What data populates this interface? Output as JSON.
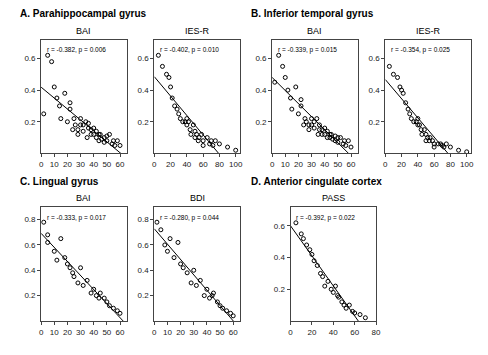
{
  "chart_data": [
    {
      "type": "scatter",
      "subtitle": "A. Parahippocampal gyrus",
      "title": "BAI",
      "annotations": [
        "r = -0.382, p = 0.006"
      ],
      "x": [
        2,
        5,
        8,
        10,
        12,
        14,
        15,
        18,
        20,
        22,
        22,
        24,
        25,
        26,
        28,
        28,
        30,
        30,
        32,
        32,
        34,
        35,
        36,
        36,
        38,
        38,
        40,
        40,
        42,
        42,
        44,
        44,
        45,
        46,
        48,
        48,
        50,
        50,
        52,
        54,
        55,
        56,
        58,
        60
      ],
      "values": [
        0.25,
        0.62,
        0.58,
        0.42,
        0.35,
        0.3,
        0.22,
        0.38,
        0.2,
        0.28,
        0.32,
        0.15,
        0.22,
        0.18,
        0.12,
        0.15,
        0.18,
        0.22,
        0.14,
        0.18,
        0.2,
        0.1,
        0.16,
        0.19,
        0.15,
        0.12,
        0.12,
        0.16,
        0.14,
        0.1,
        0.08,
        0.12,
        0.12,
        0.09,
        0.1,
        0.07,
        0.08,
        0.11,
        0.12,
        0.06,
        0.08,
        0.05,
        0.08,
        0.05
      ],
      "fit": {
        "slope": -0.006906,
        "intercept": 0.4188
      },
      "xlim": [
        0,
        65
      ],
      "ylim": [
        0,
        0.72
      ],
      "xticks": [
        0,
        10,
        20,
        30,
        40,
        50,
        60
      ],
      "yticks": [
        0.2,
        0.4,
        0.6
      ],
      "grid": false,
      "color": "#000000",
      "marker": "open_circle"
    },
    {
      "type": "scatter",
      "title": "IES-R",
      "annotations": [
        "r = -0.402, p = 0.010"
      ],
      "x": [
        5,
        10,
        15,
        18,
        20,
        22,
        25,
        28,
        30,
        32,
        35,
        38,
        40,
        40,
        42,
        44,
        45,
        48,
        50,
        50,
        52,
        54,
        55,
        58,
        60,
        60,
        65,
        68,
        70,
        72,
        75,
        80,
        90,
        100
      ],
      "values": [
        0.62,
        0.55,
        0.5,
        0.48,
        0.42,
        0.35,
        0.3,
        0.28,
        0.25,
        0.22,
        0.2,
        0.2,
        0.18,
        0.22,
        0.2,
        0.15,
        0.12,
        0.18,
        0.14,
        0.1,
        0.12,
        0.08,
        0.1,
        0.12,
        0.08,
        0.05,
        0.1,
        0.06,
        0.08,
        0.05,
        0.08,
        0.06,
        0.04,
        0.02
      ],
      "fit": {
        "slope": -0.006135,
        "intercept": 0.4851
      },
      "xlim": [
        0,
        105
      ],
      "ylim": [
        0,
        0.72
      ],
      "xticks": [
        0,
        20,
        40,
        60,
        80,
        100
      ],
      "yticks": [
        0.2,
        0.4,
        0.6
      ],
      "grid": false,
      "color": "#000000",
      "marker": "open_circle"
    },
    {
      "type": "scatter",
      "subtitle": "B. Inferior temporal gyrus",
      "title": "BAI",
      "annotations": [
        "r = -0.339, p = 0.015"
      ],
      "x": [
        2,
        5,
        8,
        10,
        12,
        14,
        15,
        18,
        20,
        22,
        22,
        24,
        25,
        26,
        28,
        28,
        30,
        30,
        32,
        32,
        34,
        35,
        36,
        36,
        38,
        38,
        40,
        40,
        42,
        42,
        44,
        44,
        45,
        46,
        48,
        48,
        50,
        50,
        52,
        54,
        55,
        56,
        58,
        60
      ],
      "values": [
        0.45,
        0.62,
        0.55,
        0.48,
        0.4,
        0.35,
        0.28,
        0.42,
        0.25,
        0.3,
        0.34,
        0.18,
        0.22,
        0.2,
        0.15,
        0.18,
        0.22,
        0.18,
        0.16,
        0.2,
        0.22,
        0.12,
        0.18,
        0.15,
        0.12,
        0.15,
        0.12,
        0.16,
        0.14,
        0.1,
        0.1,
        0.12,
        0.12,
        0.09,
        0.08,
        0.11,
        0.1,
        0.07,
        0.1,
        0.06,
        0.08,
        0.05,
        0.08,
        0.04
      ],
      "fit": {
        "slope": -0.008257,
        "intercept": 0.4801
      },
      "xlim": [
        0,
        65
      ],
      "ylim": [
        0,
        0.72
      ],
      "xticks": [
        0,
        10,
        20,
        30,
        40,
        50,
        60
      ],
      "yticks": [
        0.2,
        0.4,
        0.6
      ],
      "grid": false,
      "color": "#000000",
      "marker": "open_circle"
    },
    {
      "type": "scatter",
      "title": "IES-R",
      "annotations": [
        "r = -0.354, p = 0.025"
      ],
      "x": [
        5,
        10,
        15,
        18,
        20,
        22,
        25,
        28,
        30,
        32,
        35,
        38,
        40,
        40,
        42,
        44,
        45,
        48,
        50,
        50,
        52,
        54,
        55,
        58,
        60,
        60,
        65,
        68,
        70,
        72,
        75,
        80,
        90,
        100
      ],
      "values": [
        0.55,
        0.5,
        0.48,
        0.42,
        0.4,
        0.38,
        0.32,
        0.28,
        0.25,
        0.22,
        0.2,
        0.2,
        0.18,
        0.22,
        0.18,
        0.15,
        0.12,
        0.15,
        0.12,
        0.08,
        0.1,
        0.08,
        0.1,
        0.08,
        0.06,
        0.04,
        0.06,
        0.06,
        0.05,
        0.04,
        0.06,
        0.04,
        0.02,
        0.01
      ],
      "fit": {
        "slope": -0.006063,
        "intercept": 0.467
      },
      "xlim": [
        0,
        105
      ],
      "ylim": [
        0,
        0.72
      ],
      "xticks": [
        0,
        20,
        40,
        60,
        80,
        100
      ],
      "yticks": [
        0.2,
        0.4,
        0.6
      ],
      "grid": false,
      "color": "#000000",
      "marker": "open_circle"
    },
    {
      "type": "scatter",
      "subtitle": "C. Lingual gyrus",
      "title": "BAI",
      "annotations": [
        "r = -0.333, p = 0.017"
      ],
      "x": [
        2,
        5,
        5,
        10,
        12,
        15,
        18,
        20,
        22,
        24,
        25,
        28,
        30,
        32,
        35,
        38,
        40,
        42,
        44,
        45,
        48,
        50,
        52,
        55,
        58,
        60
      ],
      "values": [
        0.78,
        0.62,
        0.68,
        0.55,
        0.48,
        0.65,
        0.5,
        0.45,
        0.42,
        0.38,
        0.35,
        0.3,
        0.42,
        0.28,
        0.32,
        0.22,
        0.25,
        0.2,
        0.18,
        0.22,
        0.18,
        0.15,
        0.12,
        0.1,
        0.08,
        0.06
      ],
      "fit": {
        "slope": -0.011102,
        "intercept": 0.6919
      },
      "xlim": [
        0,
        65
      ],
      "ylim": [
        0,
        0.9
      ],
      "xticks": [
        0,
        10,
        20,
        30,
        40,
        50,
        60
      ],
      "yticks": [
        0.2,
        0.4,
        0.6,
        0.8
      ],
      "grid": false,
      "color": "#000000",
      "marker": "open_circle"
    },
    {
      "type": "scatter",
      "title": "BDI",
      "annotations": [
        "r = -0.280, p = 0.044"
      ],
      "x": [
        2,
        5,
        8,
        10,
        12,
        15,
        18,
        20,
        22,
        25,
        28,
        30,
        32,
        35,
        38,
        40,
        42,
        44,
        45,
        48,
        50,
        52,
        55,
        58,
        60
      ],
      "values": [
        0.78,
        0.72,
        0.6,
        0.55,
        0.65,
        0.5,
        0.62,
        0.45,
        0.42,
        0.38,
        0.3,
        0.4,
        0.28,
        0.32,
        0.2,
        0.25,
        0.18,
        0.2,
        0.22,
        0.15,
        0.12,
        0.1,
        0.08,
        0.06,
        0.04
      ],
      "fit": {
        "slope": -0.012123,
        "intercept": 0.7278
      },
      "xlim": [
        0,
        65
      ],
      "ylim": [
        0,
        0.9
      ],
      "xticks": [
        0,
        10,
        20,
        30,
        40,
        50,
        60
      ],
      "yticks": [
        0.2,
        0.4,
        0.6,
        0.8
      ],
      "grid": false,
      "color": "#000000",
      "marker": "open_circle"
    },
    {
      "type": "scatter",
      "subtitle": "D. Anterior cingulate cortex",
      "title": "PASS",
      "annotations": [
        "r = -0.392, p = 0.022"
      ],
      "x": [
        5,
        10,
        12,
        15,
        18,
        20,
        22,
        25,
        28,
        30,
        32,
        35,
        38,
        40,
        42,
        44,
        45,
        48,
        50,
        52,
        55,
        58,
        60,
        65,
        70
      ],
      "values": [
        0.62,
        0.55,
        0.52,
        0.48,
        0.45,
        0.42,
        0.38,
        0.35,
        0.3,
        0.28,
        0.22,
        0.25,
        0.2,
        0.18,
        0.22,
        0.16,
        0.15,
        0.12,
        0.1,
        0.08,
        0.1,
        0.06,
        0.05,
        0.04,
        0.02
      ],
      "fit": {
        "slope": -0.009483,
        "intercept": 0.6006
      },
      "xlim": [
        0,
        80
      ],
      "ylim": [
        0,
        0.72
      ],
      "xticks": [
        0,
        20,
        40,
        60,
        80
      ],
      "yticks": [
        0.2,
        0.4,
        0.6
      ],
      "grid": false,
      "color": "#000000",
      "marker": "open_circle"
    }
  ]
}
